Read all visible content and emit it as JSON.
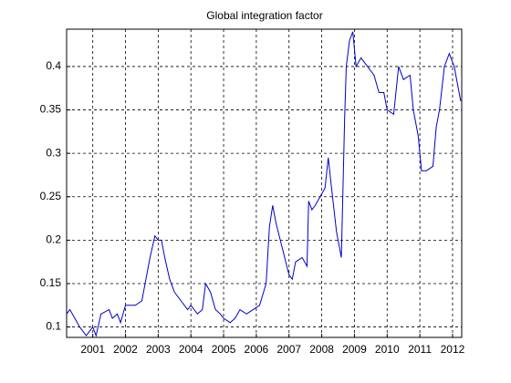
{
  "chart_data": {
    "type": "line",
    "title": "Global integration factor",
    "series": [
      {
        "name": "Global integration factor",
        "color": "#0000cc",
        "x": [
          2000.2,
          2000.3,
          2000.45,
          2000.6,
          2000.8,
          2000.9,
          2001.0,
          2001.1,
          2001.25,
          2001.5,
          2001.6,
          2001.75,
          2001.85,
          2002.0,
          2002.3,
          2002.5,
          2002.6,
          2002.75,
          2002.9,
          2003.0,
          2003.1,
          2003.2,
          2003.35,
          2003.5,
          2003.7,
          2003.9,
          2004.0,
          2004.2,
          2004.35,
          2004.45,
          2004.6,
          2004.75,
          2004.9,
          2005.0,
          2005.2,
          2005.35,
          2005.5,
          2005.7,
          2005.9,
          2006.1,
          2006.3,
          2006.4,
          2006.5,
          2006.6,
          2006.8,
          2007.0,
          2007.1,
          2007.2,
          2007.4,
          2007.55,
          2007.6,
          2007.7,
          2007.8,
          2007.95,
          2008.1,
          2008.2,
          2008.3,
          2008.45,
          2008.6,
          2008.7,
          2008.75,
          2008.85,
          2008.95,
          2009.05,
          2009.2,
          2009.4,
          2009.6,
          2009.75,
          2009.9,
          2010.0,
          2010.2,
          2010.35,
          2010.5,
          2010.7,
          2010.8,
          2010.95,
          2011.05,
          2011.2,
          2011.4,
          2011.5,
          2011.6,
          2011.75,
          2011.9,
          2012.05,
          2012.15,
          2012.25
        ],
        "values": [
          0.115,
          0.12,
          0.11,
          0.1,
          0.09,
          0.095,
          0.1,
          0.09,
          0.115,
          0.12,
          0.11,
          0.115,
          0.105,
          0.125,
          0.125,
          0.13,
          0.15,
          0.18,
          0.205,
          0.2,
          0.2,
          0.18,
          0.155,
          0.14,
          0.13,
          0.12,
          0.125,
          0.115,
          0.12,
          0.15,
          0.14,
          0.12,
          0.115,
          0.11,
          0.105,
          0.11,
          0.12,
          0.115,
          0.12,
          0.125,
          0.15,
          0.215,
          0.24,
          0.22,
          0.19,
          0.16,
          0.155,
          0.175,
          0.18,
          0.17,
          0.245,
          0.235,
          0.24,
          0.25,
          0.26,
          0.295,
          0.26,
          0.21,
          0.18,
          0.34,
          0.4,
          0.43,
          0.44,
          0.4,
          0.41,
          0.4,
          0.39,
          0.37,
          0.37,
          0.35,
          0.345,
          0.4,
          0.385,
          0.39,
          0.35,
          0.32,
          0.28,
          0.28,
          0.285,
          0.33,
          0.35,
          0.4,
          0.415,
          0.4,
          0.38,
          0.36
        ]
      }
    ],
    "xlim": [
      2000.2,
      2012.28
    ],
    "xticks": [
      2001,
      2002,
      2003,
      2004,
      2005,
      2006,
      2007,
      2008,
      2009,
      2010,
      2011,
      2012
    ],
    "ylim": [
      0.088,
      0.443
    ],
    "yticks": [
      0.1,
      0.15,
      0.2,
      0.25,
      0.3,
      0.35,
      0.4
    ],
    "grid": true
  }
}
